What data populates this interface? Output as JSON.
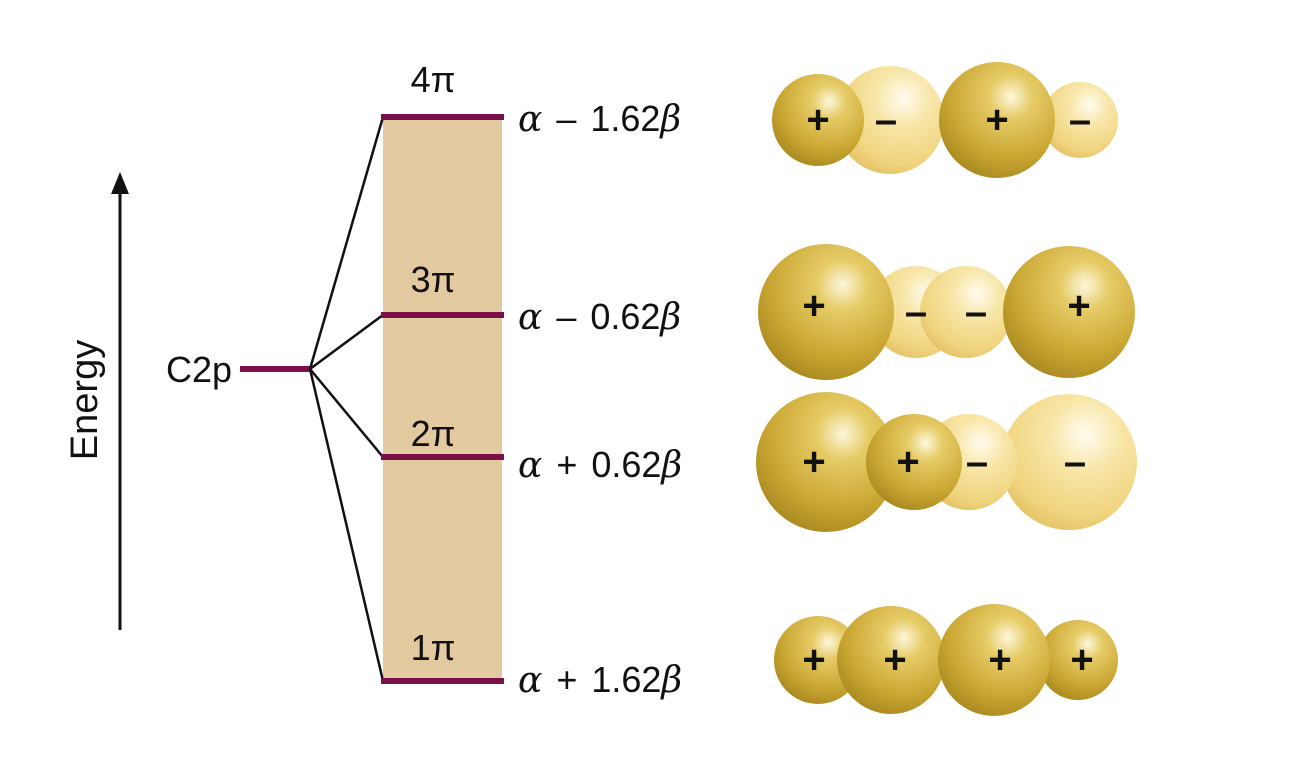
{
  "energy_axis": {
    "label": "Energy"
  },
  "atomic_level": {
    "label": "C2p"
  },
  "colors": {
    "level_line": "#7a0f4a",
    "band_fill": "#e2c9a0",
    "lobe_dark": "#c7a32e",
    "lobe_light": "#f3d98a"
  },
  "orbitals": [
    {
      "id": "4pi",
      "label": "4π",
      "energy": {
        "alpha": "α",
        "op": "–",
        "coef": "1.62",
        "beta": "β"
      },
      "lobes": [
        {
          "sign": "+",
          "phase": "dark"
        },
        {
          "sign": "–",
          "phase": "light"
        },
        {
          "sign": "+",
          "phase": "dark"
        },
        {
          "sign": "–",
          "phase": "light"
        }
      ]
    },
    {
      "id": "3pi",
      "label": "3π",
      "energy": {
        "alpha": "α",
        "op": "–",
        "coef": "0.62",
        "beta": "β"
      },
      "lobes": [
        {
          "sign": "+",
          "phase": "dark"
        },
        {
          "sign": "–",
          "phase": "light"
        },
        {
          "sign": "–",
          "phase": "light"
        },
        {
          "sign": "+",
          "phase": "dark"
        }
      ]
    },
    {
      "id": "2pi",
      "label": "2π",
      "energy": {
        "alpha": "α",
        "op": "+",
        "coef": "0.62",
        "beta": "β"
      },
      "lobes": [
        {
          "sign": "+",
          "phase": "dark"
        },
        {
          "sign": "+",
          "phase": "dark"
        },
        {
          "sign": "–",
          "phase": "light"
        },
        {
          "sign": "–",
          "phase": "light"
        }
      ]
    },
    {
      "id": "1pi",
      "label": "1π",
      "energy": {
        "alpha": "α",
        "op": "+",
        "coef": "1.62",
        "beta": "β"
      },
      "lobes": [
        {
          "sign": "+",
          "phase": "dark"
        },
        {
          "sign": "+",
          "phase": "dark"
        },
        {
          "sign": "+",
          "phase": "dark"
        },
        {
          "sign": "+",
          "phase": "dark"
        }
      ]
    }
  ]
}
